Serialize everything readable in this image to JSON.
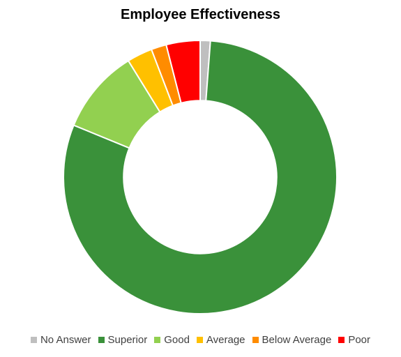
{
  "chart_data": {
    "type": "pie",
    "title": "Employee Effectiveness",
    "categories": [
      "No Answer",
      "Superior",
      "Good",
      "Average",
      "Below Average",
      "Poor"
    ],
    "values": [
      1.2,
      80.0,
      10.0,
      3.0,
      1.8,
      4.0
    ],
    "colors": [
      "#bfbfbf",
      "#3a913a",
      "#92d050",
      "#ffc000",
      "#ff8c00",
      "#ff0000"
    ],
    "legend_position": "bottom",
    "hole": 0.56
  }
}
